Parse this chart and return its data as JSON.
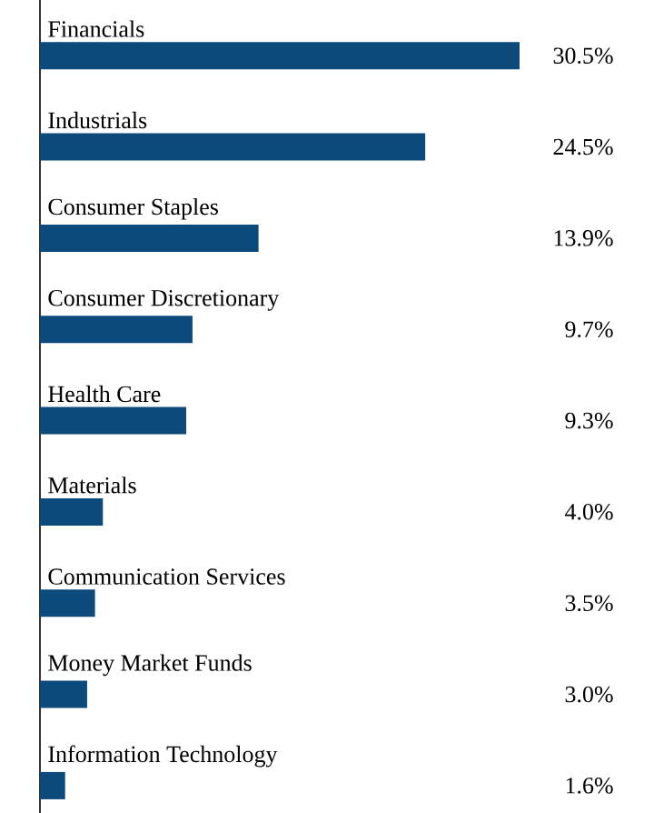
{
  "chart_data": {
    "type": "bar",
    "orientation": "horizontal",
    "categories": [
      "Financials",
      "Industrials",
      "Consumer Staples",
      "Consumer Discretionary",
      "Health Care",
      "Materials",
      "Communication Services",
      "Money Market Funds",
      "Information Technology"
    ],
    "values": [
      30.5,
      24.5,
      13.9,
      9.7,
      9.3,
      4.0,
      3.5,
      3.0,
      1.6
    ],
    "value_labels": [
      "30.5%",
      "24.5%",
      "13.9%",
      "9.7%",
      "9.3%",
      "4.0%",
      "3.5%",
      "3.0%",
      "1.6%"
    ],
    "color": "#0d4a7c"
  }
}
